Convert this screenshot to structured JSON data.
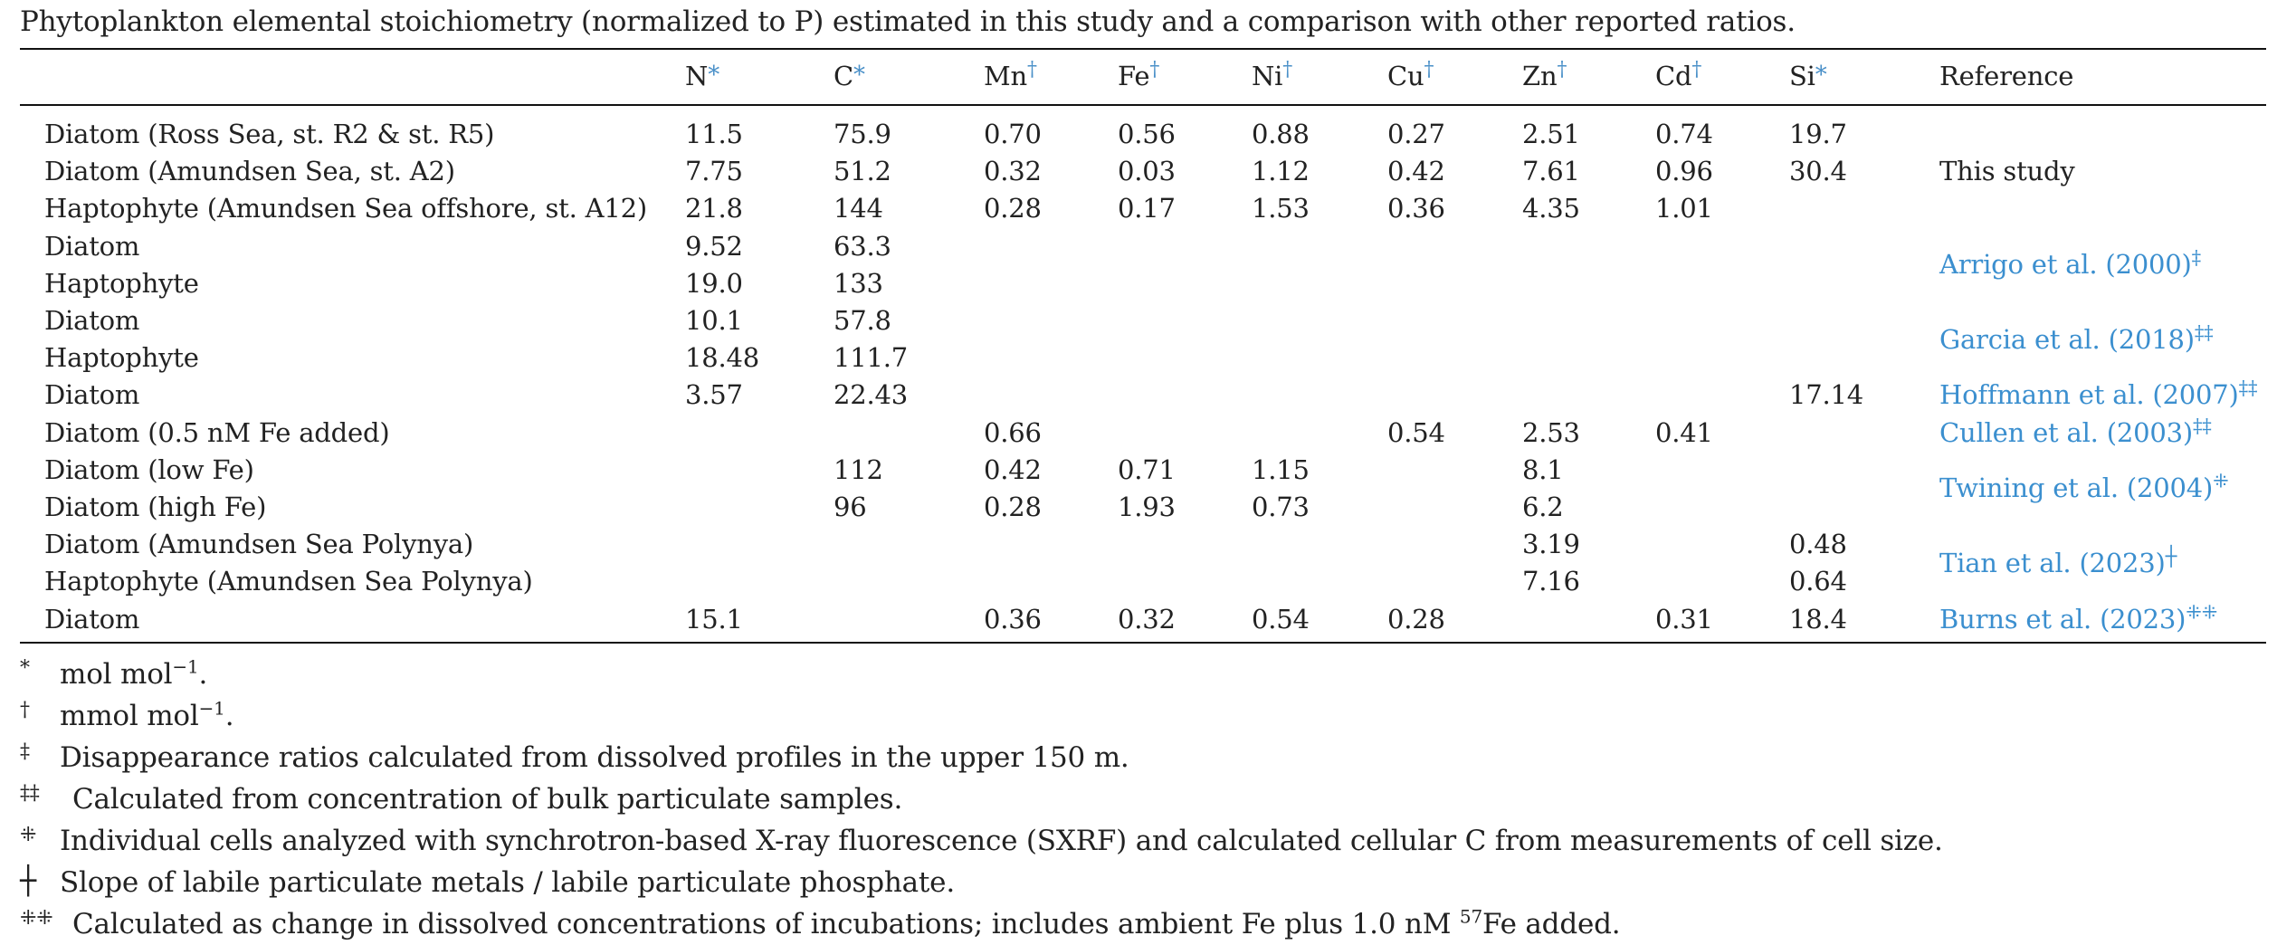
{
  "caption": "Phytoplankton elemental stoichiometry (normalized to P) estimated in this study and a comparison with other reported ratios.",
  "header": {
    "name": "",
    "columns": [
      {
        "key": "n",
        "label": "N",
        "mark": "*"
      },
      {
        "key": "c",
        "label": "C",
        "mark": "*"
      },
      {
        "key": "mn",
        "label": "Mn",
        "mark": "†"
      },
      {
        "key": "fe",
        "label": "Fe",
        "mark": "†"
      },
      {
        "key": "ni",
        "label": "Ni",
        "mark": "†"
      },
      {
        "key": "cu",
        "label": "Cu",
        "mark": "†"
      },
      {
        "key": "zn",
        "label": "Zn",
        "mark": "†"
      },
      {
        "key": "cd",
        "label": "Cd",
        "mark": "†"
      },
      {
        "key": "si",
        "label": "Si",
        "mark": "*"
      }
    ],
    "reference": "Reference"
  },
  "rows": [
    {
      "name": "Diatom (Ross Sea, st. R2 & st. R5)",
      "n": "11.5",
      "c": "75.9",
      "mn": "0.70",
      "fe": "0.56",
      "ni": "0.88",
      "cu": "0.27",
      "zn": "2.51",
      "cd": "0.74",
      "si": "19.7"
    },
    {
      "name": "Diatom (Amundsen Sea, st. A2)",
      "n": "7.75",
      "c": "51.2",
      "mn": "0.32",
      "fe": "0.03",
      "ni": "1.12",
      "cu": "0.42",
      "zn": "7.61",
      "cd": "0.96",
      "si": "30.4"
    },
    {
      "name": "Haptophyte (Amundsen Sea offshore, st. A12)",
      "n": "21.8",
      "c": "144",
      "mn": "0.28",
      "fe": "0.17",
      "ni": "1.53",
      "cu": "0.36",
      "zn": "4.35",
      "cd": "1.01",
      "si": ""
    },
    {
      "name": "Diatom",
      "n": "9.52",
      "c": "63.3",
      "mn": "",
      "fe": "",
      "ni": "",
      "cu": "",
      "zn": "",
      "cd": "",
      "si": ""
    },
    {
      "name": "Haptophyte",
      "n": "19.0",
      "c": "133",
      "mn": "",
      "fe": "",
      "ni": "",
      "cu": "",
      "zn": "",
      "cd": "",
      "si": ""
    },
    {
      "name": "Diatom",
      "n": "10.1",
      "c": "57.8",
      "mn": "",
      "fe": "",
      "ni": "",
      "cu": "",
      "zn": "",
      "cd": "",
      "si": ""
    },
    {
      "name": "Haptophyte",
      "n": "18.48",
      "c": "111.7",
      "mn": "",
      "fe": "",
      "ni": "",
      "cu": "",
      "zn": "",
      "cd": "",
      "si": ""
    },
    {
      "name": "Diatom",
      "n": "3.57",
      "c": "22.43",
      "mn": "",
      "fe": "",
      "ni": "",
      "cu": "",
      "zn": "",
      "cd": "",
      "si": "17.14"
    },
    {
      "name": "Diatom (0.5 nM Fe added)",
      "n": "",
      "c": "",
      "mn": "0.66",
      "fe": "",
      "ni": "",
      "cu": "0.54",
      "zn": "2.53",
      "cd": "0.41",
      "si": ""
    },
    {
      "name": "Diatom (low Fe)",
      "n": "",
      "c": "112",
      "mn": "0.42",
      "fe": "0.71",
      "ni": "1.15",
      "cu": "",
      "zn": "8.1",
      "cd": "",
      "si": ""
    },
    {
      "name": "Diatom (high Fe)",
      "n": "",
      "c": "96",
      "mn": "0.28",
      "fe": "1.93",
      "ni": "0.73",
      "cu": "",
      "zn": "6.2",
      "cd": "",
      "si": ""
    },
    {
      "name": "Diatom (Amundsen Sea Polynya)",
      "n": "",
      "c": "",
      "mn": "",
      "fe": "",
      "ni": "",
      "cu": "",
      "zn": "3.19",
      "cd": "",
      "si": "0.48"
    },
    {
      "name": "Haptophyte (Amundsen Sea Polynya)",
      "n": "",
      "c": "",
      "mn": "",
      "fe": "",
      "ni": "",
      "cu": "",
      "zn": "7.16",
      "cd": "",
      "si": "0.64"
    },
    {
      "name": "Diatom",
      "n": "15.1",
      "c": "",
      "mn": "0.36",
      "fe": "0.32",
      "ni": "0.54",
      "cu": "0.28",
      "zn": "",
      "cd": "0.31",
      "si": "18.4"
    }
  ],
  "references": [
    {
      "text": "This study",
      "mark": "",
      "rows": [
        0,
        2
      ],
      "link": false
    },
    {
      "text": "Arrigo et al. (2000)",
      "mark": "‡",
      "rows": [
        3,
        4
      ],
      "link": true
    },
    {
      "text": "Garcia et al. (2018)",
      "mark": "‡‡",
      "rows": [
        5,
        6
      ],
      "link": true
    },
    {
      "text": "Hoffmann et al. (2007)",
      "mark": "‡‡",
      "rows": [
        7,
        7
      ],
      "link": true
    },
    {
      "text": "Cullen et al. (2003)",
      "mark": "‡‡",
      "rows": [
        8,
        8
      ],
      "link": true
    },
    {
      "text": "Twining et al. (2004)",
      "mark": "⁜",
      "rows": [
        9,
        10
      ],
      "link": true
    },
    {
      "text": "Tian et al. (2023)",
      "mark": "┼",
      "rows": [
        11,
        12
      ],
      "link": true
    },
    {
      "text": "Burns et al. (2023)",
      "mark": "⁜⁜",
      "rows": [
        13,
        13
      ],
      "link": true
    }
  ],
  "footnotes": [
    {
      "symbol": "*",
      "text": "mol mol",
      "sup": "−1",
      "after": "."
    },
    {
      "symbol": "†",
      "text": "mmol mol",
      "sup": "−1",
      "after": "."
    },
    {
      "symbol": "‡",
      "text": "Disappearance ratios calculated from dissolved profiles in the upper 150 m.",
      "sup": "",
      "after": ""
    },
    {
      "symbol": "‡‡",
      "text": "Calculated from concentration of bulk particulate samples.",
      "sup": "",
      "after": ""
    },
    {
      "symbol": "⁜",
      "text": "Individual cells analyzed with synchrotron-based X-ray fluorescence (SXRF) and calculated cellular C from measurements of cell size.",
      "sup": "",
      "after": ""
    },
    {
      "symbol": "┼",
      "text": "Slope of labile particulate metals / labile particulate phosphate.",
      "sup": "",
      "after": ""
    },
    {
      "symbol": "⁜⁜",
      "text": "Calculated as change in dissolved concentrations of incubations; includes ambient Fe plus 1.0 nM ",
      "sup": "57",
      "after": "Fe added."
    }
  ]
}
